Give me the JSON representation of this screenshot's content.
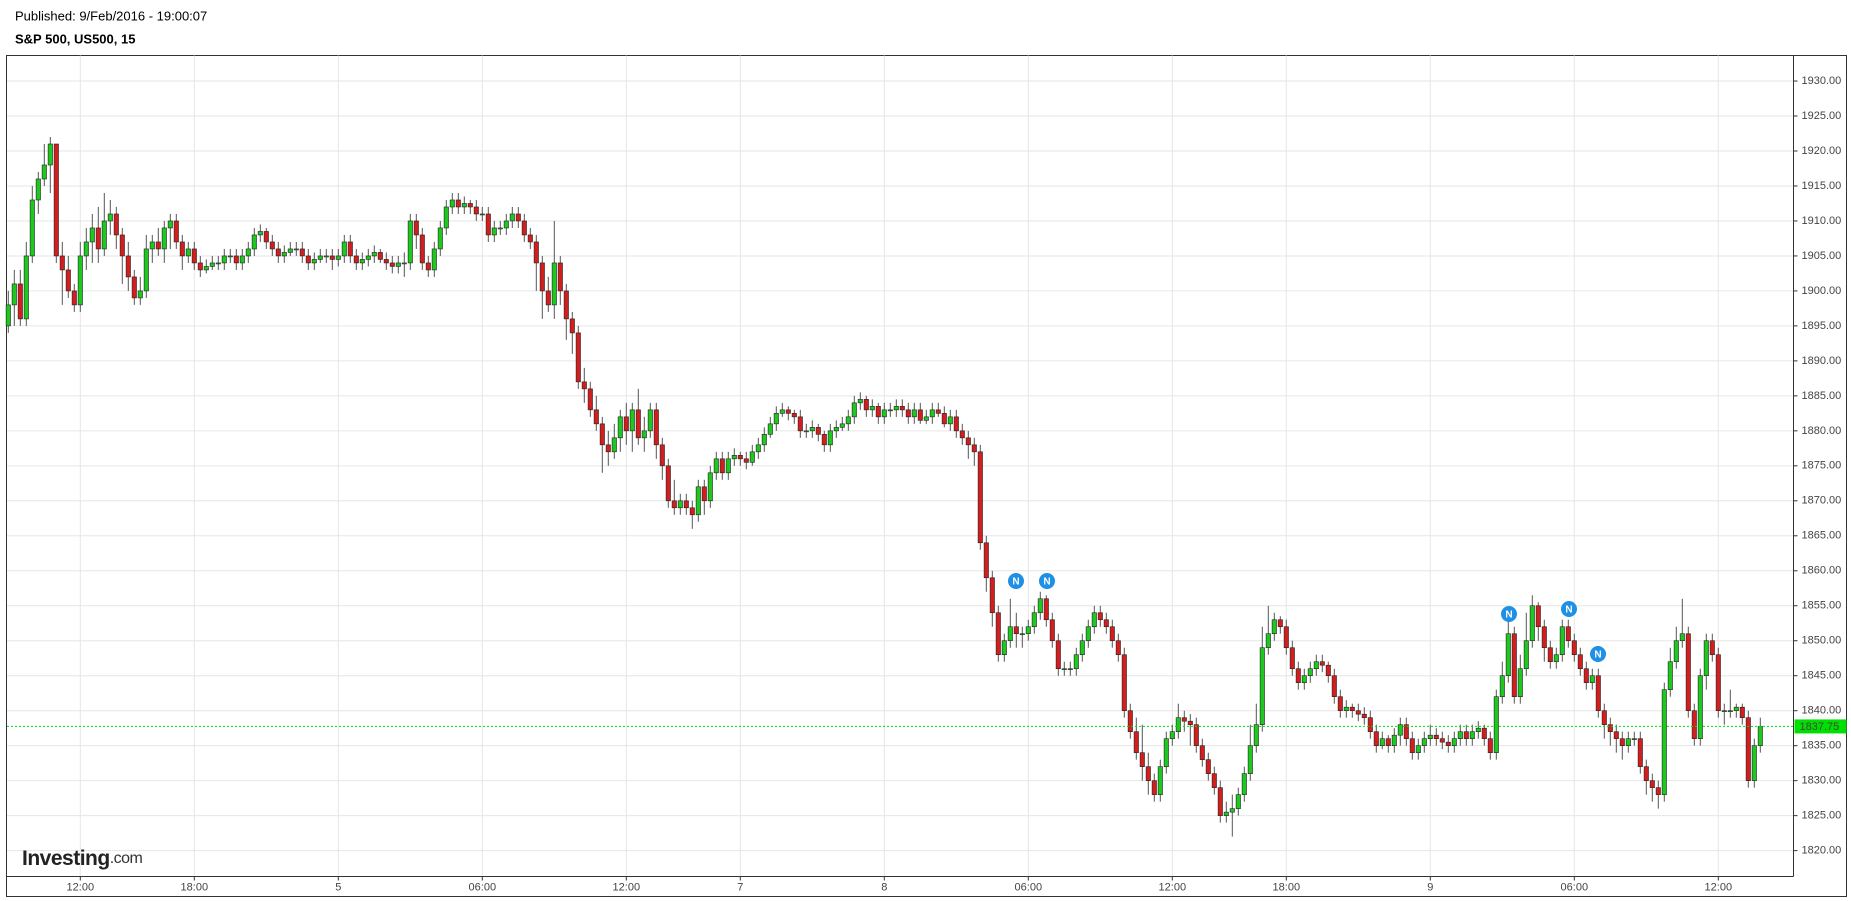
{
  "header": {
    "published": "Published: 9/Feb/2016 - 19:00:07",
    "instrument": "S&P 500, US500, 15"
  },
  "logo": {
    "name": "Investing",
    "suffix": ".com"
  },
  "news_markers": [
    "N",
    "N",
    "N",
    "N",
    "N"
  ],
  "chart_data": {
    "type": "candlestick",
    "up_color": "#1ec81e",
    "down_color": "#d21e1e",
    "last_price_color": "#00e000",
    "grid": true,
    "ylim": [
      1816.3,
      1933.65
    ],
    "yticks": [
      {
        "value": 1820,
        "label": "1820.00"
      },
      {
        "value": 1825,
        "label": "1825.00"
      },
      {
        "value": 1830,
        "label": "1830.00"
      },
      {
        "value": 1835,
        "label": "1835.00"
      },
      {
        "value": 1840,
        "label": "1840.00"
      },
      {
        "value": 1845,
        "label": "1845.00"
      },
      {
        "value": 1850,
        "label": "1850.00"
      },
      {
        "value": 1855,
        "label": "1855.00"
      },
      {
        "value": 1860,
        "label": "1860.00"
      },
      {
        "value": 1865,
        "label": "1865.00"
      },
      {
        "value": 1870,
        "label": "1870.00"
      },
      {
        "value": 1875,
        "label": "1875.00"
      },
      {
        "value": 1880,
        "label": "1880.00"
      },
      {
        "value": 1885,
        "label": "1885.00"
      },
      {
        "value": 1890,
        "label": "1890.00"
      },
      {
        "value": 1895,
        "label": "1895.00"
      },
      {
        "value": 1900,
        "label": "1900.00"
      },
      {
        "value": 1905,
        "label": "1905.00"
      },
      {
        "value": 1910,
        "label": "1910.00"
      },
      {
        "value": 1915,
        "label": "1915.00"
      },
      {
        "value": 1920,
        "label": "1920.00"
      },
      {
        "value": 1925,
        "label": "1925.00"
      },
      {
        "value": 1930,
        "label": "1930.00"
      }
    ],
    "categories": [
      null,
      null,
      null,
      null,
      null,
      null,
      null,
      null,
      null,
      null,
      null,
      null,
      "12:00",
      null,
      null,
      null,
      null,
      null,
      null,
      null,
      null,
      null,
      null,
      null,
      null,
      null,
      null,
      null,
      null,
      null,
      null,
      "18:00",
      null,
      null,
      null,
      null,
      null,
      null,
      null,
      null,
      null,
      null,
      null,
      null,
      null,
      null,
      null,
      null,
      null,
      null,
      null,
      null,
      null,
      null,
      null,
      "5",
      null,
      null,
      null,
      null,
      null,
      null,
      null,
      null,
      null,
      null,
      null,
      null,
      null,
      null,
      null,
      null,
      null,
      null,
      null,
      null,
      null,
      null,
      null,
      "06:00",
      null,
      null,
      null,
      null,
      null,
      null,
      null,
      null,
      null,
      null,
      null,
      null,
      null,
      null,
      null,
      null,
      null,
      null,
      null,
      null,
      null,
      null,
      null,
      "12:00",
      null,
      null,
      null,
      null,
      null,
      null,
      null,
      null,
      null,
      null,
      null,
      null,
      null,
      null,
      null,
      null,
      null,
      null,
      "7",
      null,
      null,
      null,
      null,
      null,
      null,
      null,
      null,
      null,
      null,
      null,
      null,
      null,
      null,
      null,
      null,
      null,
      null,
      null,
      null,
      null,
      null,
      null,
      "8",
      null,
      null,
      null,
      null,
      null,
      null,
      null,
      null,
      null,
      null,
      null,
      null,
      null,
      null,
      null,
      null,
      null,
      null,
      null,
      null,
      null,
      null,
      null,
      "06:00",
      null,
      null,
      null,
      null,
      null,
      null,
      null,
      null,
      null,
      null,
      null,
      null,
      null,
      null,
      null,
      null,
      null,
      null,
      null,
      null,
      null,
      null,
      null,
      "12:00",
      null,
      null,
      null,
      null,
      null,
      null,
      null,
      null,
      null,
      null,
      null,
      null,
      null,
      null,
      null,
      null,
      null,
      null,
      "18:00",
      null,
      null,
      null,
      null,
      null,
      null,
      null,
      null,
      null,
      null,
      null,
      null,
      null,
      null,
      null,
      null,
      null,
      null,
      null,
      null,
      null,
      null,
      null,
      "9",
      null,
      null,
      null,
      null,
      null,
      null,
      null,
      null,
      null,
      null,
      null,
      null,
      null,
      null,
      null,
      null,
      null,
      null,
      null,
      null,
      null,
      null,
      null,
      "06:00",
      null,
      null,
      null,
      null,
      null,
      null,
      null,
      null,
      null,
      null,
      null,
      null,
      null,
      null,
      null,
      null,
      null,
      null,
      null,
      null,
      null,
      null,
      null,
      "12:00",
      null,
      null,
      null,
      null,
      null,
      null,
      null
    ],
    "open": [
      1895,
      1898,
      1901,
      1896,
      1905,
      1913,
      1916,
      1918,
      1921,
      1905,
      1903,
      1900,
      1898,
      1905,
      1907,
      1909,
      1906,
      1910,
      1911,
      1908,
      1905,
      1902,
      1899,
      1900,
      1906,
      1907,
      1906,
      1909,
      1910,
      1907,
      1905,
      1906,
      1904,
      1903,
      1903.5,
      1904,
      1904,
      1905,
      1905,
      1904,
      1905,
      1906,
      1908,
      1908.5,
      1907,
      1906,
      1905,
      1905.5,
      1906,
      1906,
      1905,
      1904,
      1904.5,
      1905,
      1905,
      1904.5,
      1905,
      1907,
      1905,
      1904,
      1904.5,
      1905,
      1905.5,
      1904.5,
      1904,
      1903.5,
      1904,
      1904,
      1910,
      1908,
      1904,
      1903,
      1906,
      1909,
      1912,
      1913,
      1912,
      1912.5,
      1912,
      1911,
      1911,
      1908,
      1909,
      1909,
      1910,
      1911,
      1910,
      1908,
      1907,
      1904,
      1900,
      1898,
      1904,
      1900,
      1896,
      1894,
      1887,
      1886,
      1883,
      1881,
      1878,
      1877,
      1879,
      1882,
      1880,
      1883,
      1879,
      1880,
      1883,
      1878,
      1875,
      1870,
      1869,
      1870,
      1869,
      1868,
      1872,
      1870,
      1874,
      1876,
      1874,
      1876,
      1876.5,
      1876,
      1875.5,
      1877,
      1878,
      1879.5,
      1881,
      1882.5,
      1883,
      1882.5,
      1882,
      1880,
      1880,
      1880.5,
      1879.5,
      1878,
      1880,
      1880.5,
      1881,
      1882,
      1884,
      1884.5,
      1883,
      1883.5,
      1882,
      1883,
      1883,
      1883.5,
      1883,
      1882,
      1883,
      1881.5,
      1882,
      1883,
      1882.5,
      1881,
      1882,
      1880,
      1879,
      1878,
      1877,
      1864,
      1859,
      1854,
      1848,
      1850,
      1852,
      1851,
      1851,
      1852,
      1854,
      1856,
      1853,
      1850,
      1846,
      1846,
      1846,
      1848,
      1850,
      1852,
      1854,
      1853,
      1852,
      1850,
      1848,
      1840,
      1837,
      1834,
      1832,
      1830,
      1828,
      1832,
      1836,
      1837,
      1839,
      1838.5,
      1838,
      1835,
      1833,
      1831,
      1829,
      1825,
      1825.5,
      1826,
      1828,
      1831,
      1835,
      1838,
      1849,
      1851,
      1853,
      1852,
      1849,
      1846,
      1844,
      1845,
      1846,
      1847,
      1846.5,
      1845,
      1842,
      1840,
      1840.5,
      1840,
      1839.5,
      1839,
      1837,
      1835,
      1836,
      1835,
      1836.5,
      1838,
      1836,
      1834,
      1835,
      1836,
      1836.5,
      1836,
      1835.5,
      1835,
      1836,
      1837,
      1836,
      1837,
      1837.5,
      1836,
      1834,
      1842,
      1845,
      1851,
      1842,
      1846,
      1850,
      1855,
      1852,
      1849,
      1847,
      1848,
      1852,
      1850,
      1848,
      1846,
      1844,
      1845,
      1840,
      1838,
      1837,
      1836,
      1835,
      1836,
      1836,
      1832,
      1830,
      1829,
      1828,
      1843,
      1847,
      1850,
      1851,
      1840,
      1836,
      1845,
      1850,
      1848,
      1840,
      1840,
      1840,
      1840.5,
      1839,
      1830,
      1835
    ],
    "high": [
      1900,
      1903,
      1903,
      1907,
      1915,
      1917,
      1921,
      1922,
      1921,
      1907,
      1905,
      1901,
      1907,
      1909,
      1911,
      1912,
      1914,
      1913,
      1912,
      1909,
      1907,
      1903,
      1902,
      1908,
      1908,
      1909,
      1910,
      1911,
      1911,
      1908,
      1907,
      1907,
      1905,
      1904.5,
      1905,
      1905,
      1906,
      1906,
      1906,
      1906,
      1907,
      1909,
      1909.5,
      1909,
      1908,
      1907,
      1906.5,
      1907,
      1907,
      1907,
      1906,
      1905.5,
      1906,
      1906,
      1906,
      1906,
      1908,
      1908,
      1906,
      1905.5,
      1906,
      1906.5,
      1906,
      1905.5,
      1905,
      1905,
      1905.5,
      1911,
      1911,
      1909,
      1905,
      1907,
      1910,
      1913,
      1914,
      1914,
      1913.5,
      1913,
      1913,
      1912,
      1912,
      1910,
      1910,
      1911,
      1912,
      1912,
      1911,
      1909,
      1908,
      1905,
      1902,
      1910,
      1905,
      1901,
      1897,
      1895,
      1889,
      1887,
      1885,
      1882,
      1880,
      1881,
      1883,
      1884,
      1884,
      1886,
      1882,
      1884,
      1884,
      1879,
      1876,
      1873,
      1871,
      1871,
      1870,
      1873,
      1873,
      1875,
      1877,
      1877,
      1877,
      1877.5,
      1877,
      1877,
      1878,
      1879,
      1880.5,
      1882,
      1883.5,
      1884,
      1883.5,
      1883,
      1883,
      1881,
      1881.5,
      1881,
      1880,
      1881,
      1881.5,
      1882,
      1883,
      1885,
      1885.5,
      1885,
      1884.5,
      1884,
      1884,
      1884,
      1884.5,
      1884.5,
      1884,
      1884,
      1884,
      1883,
      1884,
      1884,
      1883.5,
      1883,
      1883,
      1881,
      1880,
      1879,
      1878,
      1865,
      1860,
      1855,
      1851,
      1856,
      1854,
      1852,
      1853,
      1855,
      1857,
      1856.5,
      1854,
      1851,
      1847,
      1847,
      1849,
      1851,
      1853,
      1855,
      1855,
      1854,
      1853,
      1851,
      1849,
      1841,
      1839,
      1838,
      1834,
      1831,
      1833,
      1837,
      1838,
      1841,
      1840,
      1839.5,
      1839,
      1836,
      1834,
      1832,
      1830,
      1827,
      1828,
      1829,
      1832,
      1838,
      1841,
      1852,
      1855,
      1854,
      1853.5,
      1853,
      1850,
      1847,
      1846,
      1847,
      1848,
      1848,
      1847,
      1846,
      1843,
      1841.5,
      1841,
      1841,
      1840.5,
      1840,
      1838,
      1837,
      1836.5,
      1837.5,
      1839,
      1839,
      1837,
      1836,
      1837,
      1838,
      1837.5,
      1837,
      1836.5,
      1837,
      1838,
      1838,
      1838,
      1838.5,
      1838,
      1837,
      1843,
      1847,
      1853,
      1852,
      1848,
      1854,
      1856.5,
      1855.5,
      1853,
      1850,
      1849,
      1853,
      1853,
      1851,
      1849,
      1847,
      1846,
      1846,
      1841,
      1839,
      1838,
      1837,
      1837,
      1837,
      1837,
      1833,
      1831,
      1830,
      1844,
      1849,
      1852,
      1856,
      1852,
      1841,
      1846,
      1851,
      1851,
      1849,
      1841,
      1843,
      1841,
      1841,
      1840,
      1836,
      1839
    ],
    "low": [
      1894,
      1895,
      1895,
      1895,
      1904,
      1911,
      1915,
      1914,
      1904,
      1898,
      1899,
      1897,
      1897,
      1903,
      1904,
      1904,
      1905,
      1908,
      1906,
      1901,
      1900,
      1898,
      1898,
      1899,
      1904,
      1905,
      1904,
      1906,
      1906,
      1903,
      1904,
      1903,
      1902,
      1902.5,
      1903,
      1903,
      1903,
      1904,
      1903,
      1903,
      1904,
      1905,
      1907,
      1906,
      1905,
      1904,
      1904,
      1905,
      1905,
      1904,
      1903,
      1903,
      1904,
      1904,
      1903,
      1903.5,
      1904,
      1904,
      1903,
      1903,
      1903.5,
      1904,
      1904,
      1903,
      1902.5,
      1902.5,
      1902,
      1903,
      1906,
      1903,
      1902,
      1902,
      1905,
      1908,
      1911,
      1911,
      1911,
      1911,
      1910,
      1910,
      1907,
      1907,
      1908,
      1908,
      1909,
      1909,
      1907,
      1906,
      1900,
      1896,
      1897,
      1896,
      1898,
      1893,
      1891,
      1886,
      1884,
      1882,
      1880,
      1874,
      1875,
      1876,
      1877,
      1878,
      1877,
      1878,
      1877,
      1879,
      1876,
      1873,
      1869,
      1868,
      1868,
      1868,
      1866,
      1867,
      1868,
      1869,
      1873,
      1873,
      1873,
      1875,
      1875,
      1874.5,
      1875,
      1876,
      1877,
      1879,
      1880,
      1882,
      1881.5,
      1881,
      1879,
      1879,
      1879,
      1878.5,
      1877,
      1877,
      1879,
      1880,
      1880,
      1881,
      1883,
      1882,
      1882,
      1881,
      1881,
      1882,
      1882,
      1882,
      1881,
      1881,
      1881,
      1881,
      1881,
      1882,
      1880.5,
      1880,
      1879,
      1878,
      1876,
      1875,
      1863,
      1857,
      1852,
      1847,
      1847,
      1849,
      1849,
      1849,
      1850,
      1851,
      1853,
      1852,
      1849,
      1845,
      1845,
      1845,
      1845,
      1847,
      1849,
      1851,
      1852,
      1851,
      1849,
      1847,
      1839,
      1836,
      1833,
      1830,
      1828,
      1827,
      1827,
      1831,
      1835,
      1836,
      1837,
      1835,
      1834,
      1832,
      1830,
      1828,
      1824,
      1824,
      1822,
      1825,
      1827,
      1830,
      1834,
      1837,
      1848,
      1850,
      1851,
      1848,
      1845,
      1843,
      1843,
      1844,
      1845,
      1845.5,
      1844,
      1841,
      1839,
      1839,
      1839,
      1838.5,
      1838,
      1836,
      1834,
      1834.5,
      1834,
      1834,
      1835,
      1835,
      1833,
      1833,
      1834,
      1835,
      1835,
      1834.5,
      1834,
      1834,
      1835,
      1835,
      1835,
      1836,
      1835,
      1833,
      1833,
      1841,
      1844,
      1841,
      1841,
      1845,
      1849,
      1850,
      1847,
      1846,
      1846,
      1847,
      1849,
      1847,
      1845,
      1843,
      1843,
      1839,
      1836,
      1835,
      1834,
      1833,
      1834,
      1835,
      1831,
      1828,
      1827,
      1826,
      1827,
      1842,
      1846,
      1849,
      1839,
      1835,
      1835,
      1843,
      1847,
      1839,
      1838,
      1839,
      1839,
      1838,
      1829,
      1829,
      1834
    ],
    "close": [
      1898,
      1901,
      1896,
      1905,
      1913,
      1916,
      1918,
      1921,
      1905,
      1903,
      1900,
      1898,
      1905,
      1907,
      1909,
      1906,
      1910,
      1911,
      1908,
      1905,
      1902,
      1899,
      1900,
      1906,
      1907,
      1906,
      1909,
      1910,
      1907,
      1905,
      1906,
      1904,
      1903,
      1903.5,
      1904,
      1904,
      1905,
      1905,
      1904,
      1905,
      1906,
      1908,
      1908.5,
      1907,
      1906,
      1905,
      1905.5,
      1906,
      1906,
      1905,
      1904,
      1904.5,
      1905,
      1905,
      1904.5,
      1905,
      1907,
      1905,
      1904,
      1904.5,
      1905,
      1905.5,
      1904.5,
      1904,
      1903.5,
      1904,
      1904,
      1910,
      1908,
      1904,
      1903,
      1906,
      1909,
      1912,
      1913,
      1912,
      1912.5,
      1912,
      1911,
      1911,
      1908,
      1909,
      1909,
      1910,
      1911,
      1910,
      1908,
      1907,
      1904,
      1900,
      1898,
      1904,
      1900,
      1896,
      1894,
      1887,
      1886,
      1883,
      1881,
      1878,
      1877,
      1879,
      1882,
      1880,
      1883,
      1879,
      1880,
      1883,
      1878,
      1875,
      1870,
      1869,
      1870,
      1869,
      1868,
      1872,
      1870,
      1874,
      1876,
      1874,
      1876,
      1876.5,
      1876,
      1875.5,
      1877,
      1878,
      1879.5,
      1881,
      1882.5,
      1883,
      1882.5,
      1882,
      1880,
      1880,
      1880.5,
      1879.5,
      1878,
      1880,
      1880.5,
      1881,
      1882,
      1884,
      1884.5,
      1883,
      1883.5,
      1882,
      1883,
      1883,
      1883.5,
      1883,
      1882,
      1883,
      1881.5,
      1882,
      1883,
      1882.5,
      1881,
      1882,
      1880,
      1879,
      1878,
      1877,
      1864,
      1859,
      1854,
      1848,
      1850,
      1852,
      1851,
      1851,
      1852,
      1854,
      1856,
      1853,
      1850,
      1846,
      1846,
      1846,
      1848,
      1850,
      1852,
      1854,
      1853,
      1852,
      1850,
      1848,
      1840,
      1837,
      1834,
      1832,
      1830,
      1828,
      1832,
      1836,
      1837,
      1839,
      1838.5,
      1838,
      1835,
      1833,
      1831,
      1829,
      1825,
      1825.5,
      1826,
      1828,
      1831,
      1835,
      1838,
      1849,
      1851,
      1853,
      1852,
      1849,
      1846,
      1844,
      1845,
      1846,
      1847,
      1846.5,
      1845,
      1842,
      1840,
      1840.5,
      1840,
      1839.5,
      1839,
      1837,
      1835,
      1836,
      1835,
      1836.5,
      1838,
      1836,
      1834,
      1835,
      1836,
      1836.5,
      1836,
      1835.5,
      1835,
      1836,
      1837,
      1836,
      1837,
      1837.5,
      1836,
      1834,
      1842,
      1845,
      1851,
      1842,
      1846,
      1850,
      1855,
      1852,
      1849,
      1847,
      1848,
      1852,
      1850,
      1848,
      1846,
      1844,
      1845,
      1840,
      1838,
      1837,
      1836,
      1835,
      1836,
      1836,
      1832,
      1830,
      1829,
      1828,
      1843,
      1847,
      1850,
      1851,
      1840,
      1836,
      1845,
      1850,
      1848,
      1840,
      1840,
      1840,
      1840.5,
      1839,
      1830,
      1835,
      1837.75
    ]
  }
}
